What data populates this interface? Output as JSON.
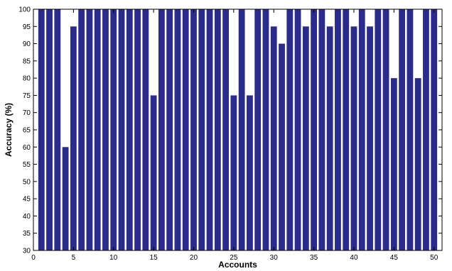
{
  "chart_data": {
    "type": "bar",
    "xlabel": "Accounts",
    "ylabel": "Accuracy (%)",
    "ylim": [
      30,
      100
    ],
    "xlim": [
      0,
      51
    ],
    "x_ticks": [
      0,
      5,
      10,
      15,
      20,
      25,
      30,
      35,
      40,
      45,
      50
    ],
    "y_ticks": [
      30,
      35,
      40,
      45,
      50,
      55,
      60,
      65,
      70,
      75,
      80,
      85,
      90,
      95,
      100
    ],
    "grid": false,
    "bar_color": "#2b2b8c",
    "categories": [
      1,
      2,
      3,
      4,
      5,
      6,
      7,
      8,
      9,
      10,
      11,
      12,
      13,
      14,
      15,
      16,
      17,
      18,
      19,
      20,
      21,
      22,
      23,
      24,
      25,
      26,
      27,
      28,
      29,
      30,
      31,
      32,
      33,
      34,
      35,
      36,
      37,
      38,
      39,
      40,
      41,
      42,
      43,
      44,
      45,
      46,
      47,
      48,
      49,
      50
    ],
    "values": [
      100,
      100,
      100,
      60,
      95,
      100,
      100,
      100,
      100,
      100,
      100,
      100,
      100,
      100,
      75,
      100,
      100,
      100,
      100,
      100,
      100,
      100,
      100,
      100,
      75,
      100,
      75,
      100,
      100,
      95,
      90,
      100,
      100,
      95,
      100,
      100,
      95,
      100,
      100,
      95,
      100,
      95,
      100,
      100,
      80,
      100,
      100,
      80,
      100,
      100
    ]
  }
}
